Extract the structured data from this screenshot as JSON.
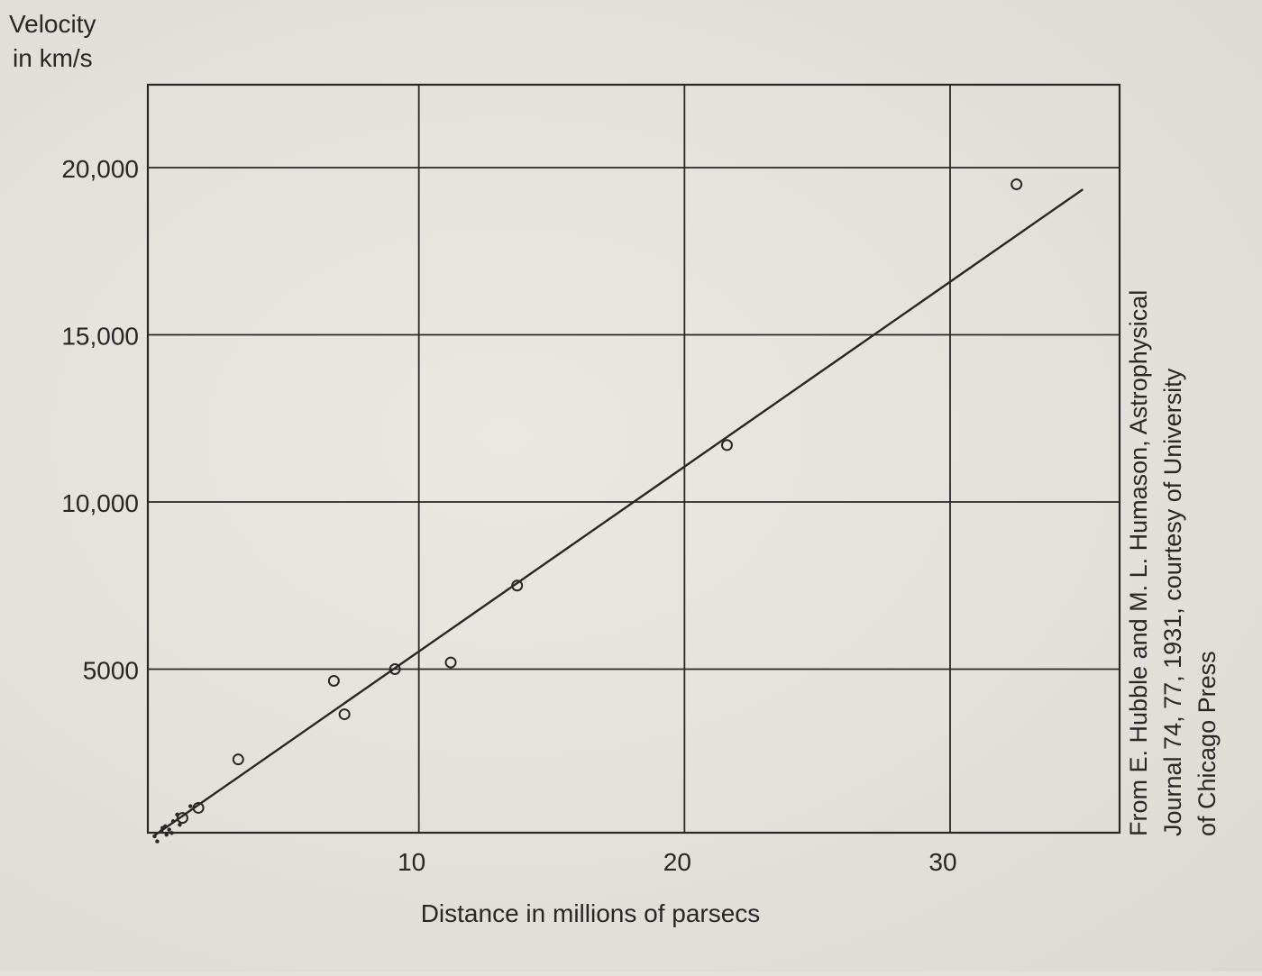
{
  "chart_data": {
    "type": "scatter",
    "ylabel_lines": [
      "Velocity",
      "in km/s"
    ],
    "xlabel": "Distance in millions of parsecs",
    "xlim": [
      0,
      36
    ],
    "ylim": [
      0,
      22250
    ],
    "grid": true,
    "x_ticks": [
      {
        "value": 10,
        "label": "10"
      },
      {
        "value": 20,
        "label": "20"
      },
      {
        "value": 30,
        "label": "30"
      }
    ],
    "y_ticks": [
      {
        "value": 5000,
        "label": "5000"
      },
      {
        "value": 10000,
        "label": "10,000"
      },
      {
        "value": 15000,
        "label": "15,000"
      },
      {
        "value": 20000,
        "label": "20,000"
      }
    ],
    "open_points": [
      {
        "x": 1.1,
        "y": 550
      },
      {
        "x": 1.7,
        "y": 850
      },
      {
        "x": 3.2,
        "y": 2300
      },
      {
        "x": 6.8,
        "y": 4650
      },
      {
        "x": 7.2,
        "y": 3650
      },
      {
        "x": 9.1,
        "y": 5000
      },
      {
        "x": 11.2,
        "y": 5200
      },
      {
        "x": 13.7,
        "y": 7500
      },
      {
        "x": 21.6,
        "y": 11700
      },
      {
        "x": 32.5,
        "y": 19500
      }
    ],
    "small_points": [
      {
        "x": 0.05,
        "y": 0
      },
      {
        "x": 0.15,
        "y": -150
      },
      {
        "x": 0.3,
        "y": 150
      },
      {
        "x": 0.45,
        "y": 300
      },
      {
        "x": 0.6,
        "y": 200
      },
      {
        "x": 0.75,
        "y": 450
      },
      {
        "x": 0.9,
        "y": 650
      },
      {
        "x": 0.5,
        "y": 50
      },
      {
        "x": 0.7,
        "y": 100
      },
      {
        "x": 1.0,
        "y": 350
      },
      {
        "x": 1.4,
        "y": 900
      },
      {
        "x": 0.35,
        "y": 250
      }
    ],
    "fit_line": {
      "x0": 0,
      "y0": 0,
      "x1": 35,
      "y1": 19350
    }
  },
  "credit_lines": [
    "From E. Hubble and M. L. Humason, Astrophysical",
    "Journal 74, 77, 1931, courtesy of University",
    "of Chicago Press"
  ],
  "colors": {
    "ink": "#2a2626",
    "paper": "#e5e1dc"
  }
}
